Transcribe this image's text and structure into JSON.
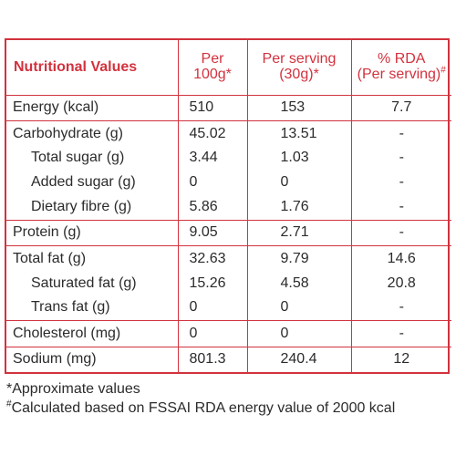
{
  "header": {
    "title": "Nutritional Values",
    "per_100g_line1": "Per",
    "per_100g_line2": "100g",
    "per_100g_mark": "*",
    "per_serving_line1": "Per serving",
    "per_serving_line2": "(30g)",
    "per_serving_mark": "*",
    "rda_line1": "% RDA",
    "rda_line2": "(Per serving)",
    "rda_mark": "#"
  },
  "rows": [
    {
      "label": "Energy (kcal)",
      "per_100g": "510",
      "per_serving": "153",
      "rda": "7.7"
    },
    {
      "label": "Carbohydrate (g)",
      "per_100g": "45.02",
      "per_serving": "13.51",
      "rda": "-"
    },
    {
      "label": "Total sugar (g)",
      "per_100g": "3.44",
      "per_serving": "1.03",
      "rda": "-"
    },
    {
      "label": "Added sugar (g)",
      "per_100g": "0",
      "per_serving": "0",
      "rda": "-"
    },
    {
      "label": "Dietary fibre (g)",
      "per_100g": "5.86",
      "per_serving": "1.76",
      "rda": "-"
    },
    {
      "label": "Protein (g)",
      "per_100g": "9.05",
      "per_serving": "2.71",
      "rda": "-"
    },
    {
      "label": "Total fat (g)",
      "per_100g": "32.63",
      "per_serving": "9.79",
      "rda": "14.6"
    },
    {
      "label": "Saturated fat (g)",
      "per_100g": "15.26",
      "per_serving": "4.58",
      "rda": "20.8"
    },
    {
      "label": "Trans fat (g)",
      "per_100g": "0",
      "per_serving": "0",
      "rda": "-"
    },
    {
      "label": "Cholesterol (mg)",
      "per_100g": "0",
      "per_serving": "0",
      "rda": "-"
    },
    {
      "label": "Sodium (mg)",
      "per_100g": "801.3",
      "per_serving": "240.4",
      "rda": "12"
    }
  ],
  "footnotes": {
    "approx_mark": "*",
    "approx_text": "Approximate values",
    "rda_mark": "#",
    "rda_text": "Calculated based on FSSAI RDA energy value of 2000 kcal"
  },
  "colors": {
    "accent": "#d2323e",
    "text": "#2b2b2b"
  }
}
